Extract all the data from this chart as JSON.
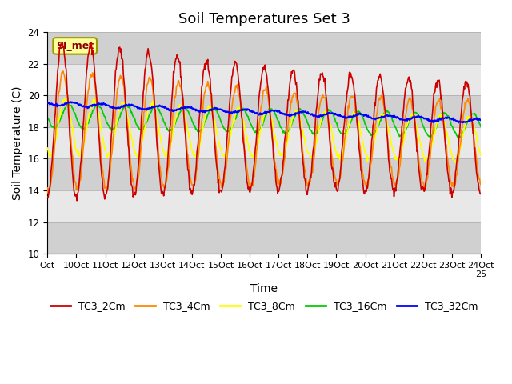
{
  "title": "Soil Temperatures Set 3",
  "xlabel": "Time",
  "ylabel": "Soil Temperature (C)",
  "ylim": [
    10,
    24
  ],
  "yticks": [
    10,
    12,
    14,
    16,
    18,
    20,
    22,
    24
  ],
  "annotation": "SI_met",
  "legend": [
    "TC3_2Cm",
    "TC3_4Cm",
    "TC3_8Cm",
    "TC3_16Cm",
    "TC3_32Cm"
  ],
  "colors": [
    "#cc0000",
    "#ff8800",
    "#ffff00",
    "#00cc00",
    "#0000ff"
  ],
  "line_widths": [
    1.2,
    1.2,
    1.2,
    1.2,
    1.5
  ],
  "xtick_positions": [
    0,
    1,
    2,
    3,
    4,
    5,
    6,
    7,
    8,
    9,
    10,
    11,
    12,
    13,
    14,
    15
  ],
  "xtick_labels": [
    "Oct",
    "10Oct",
    "11Oct",
    "12Oct",
    "13Oct",
    "14Oct",
    "15Oct",
    "16Oct",
    "17Oct",
    "18Oct",
    "19Oct",
    "20Oct",
    "21Oct",
    "22Oct",
    "23Oct",
    "24Oct 25"
  ],
  "background_color": "#ffffff",
  "plot_bg_color": "#e8e8e8",
  "band_color": "#d0d0d0",
  "title_fontsize": 13,
  "axis_fontsize": 10,
  "tick_fontsize": 8.5
}
